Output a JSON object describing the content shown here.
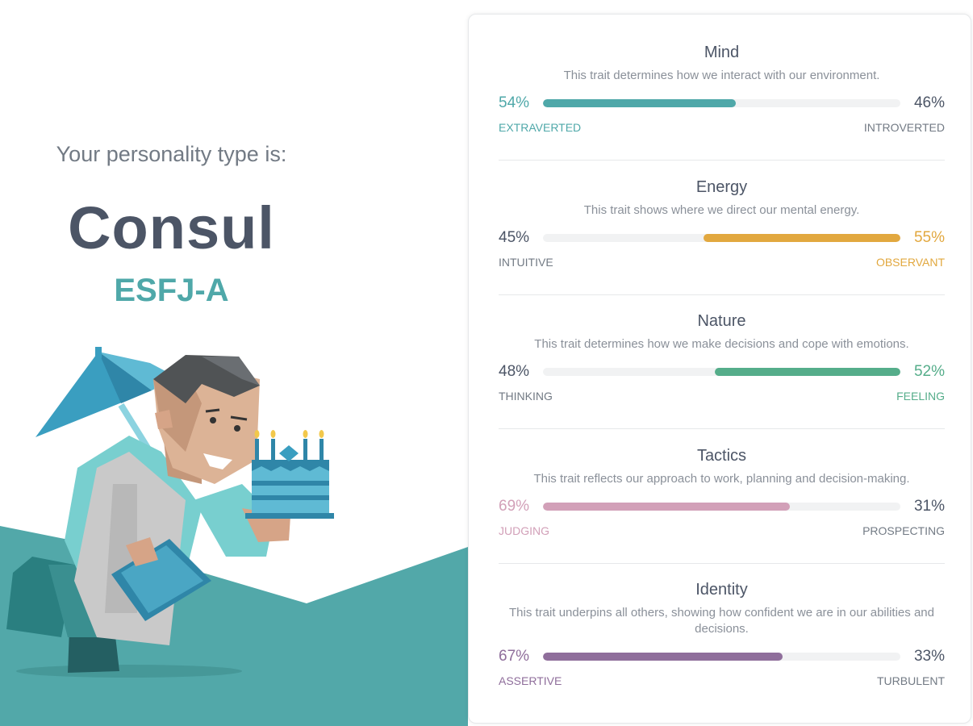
{
  "intro": "Your personality type is:",
  "type_name": "Consul",
  "type_code": "ESFJ-A",
  "colors": {
    "teal": "#4fa8a9",
    "gold": "#e2a83f",
    "green": "#55ad8a",
    "pink": "#d2a0b8",
    "purple": "#8f6e9b",
    "gray_text": "#727a84",
    "dark_text": "#4c5566",
    "track": "#f1f2f3"
  },
  "traits": [
    {
      "title": "Mind",
      "description": "This trait determines how we interact with our environment.",
      "left_pct": "54%",
      "right_pct": "46%",
      "left_label": "EXTRAVERTED",
      "right_label": "INTROVERTED",
      "fill_fraction": 0.54,
      "fill_side": "left",
      "color": "#4fa8a9"
    },
    {
      "title": "Energy",
      "description": "This trait shows where we direct our mental energy.",
      "left_pct": "45%",
      "right_pct": "55%",
      "left_label": "INTUITIVE",
      "right_label": "OBSERVANT",
      "fill_fraction": 0.55,
      "fill_side": "right",
      "color": "#e2a83f"
    },
    {
      "title": "Nature",
      "description": "This trait determines how we make decisions and cope with emotions.",
      "left_pct": "48%",
      "right_pct": "52%",
      "left_label": "THINKING",
      "right_label": "FEELING",
      "fill_fraction": 0.52,
      "fill_side": "right",
      "color": "#55ad8a"
    },
    {
      "title": "Tactics",
      "description": "This trait reflects our approach to work, planning and decision-making.",
      "left_pct": "69%",
      "right_pct": "31%",
      "left_label": "JUDGING",
      "right_label": "PROSPECTING",
      "fill_fraction": 0.69,
      "fill_side": "left",
      "color": "#d2a0b8"
    },
    {
      "title": "Identity",
      "description": "This trait underpins all others, showing how confident we are in our abilities and decisions.",
      "left_pct": "67%",
      "right_pct": "33%",
      "left_label": "ASSERTIVE",
      "right_label": "TURBULENT",
      "fill_fraction": 0.67,
      "fill_side": "left",
      "color": "#8f6e9b"
    }
  ]
}
